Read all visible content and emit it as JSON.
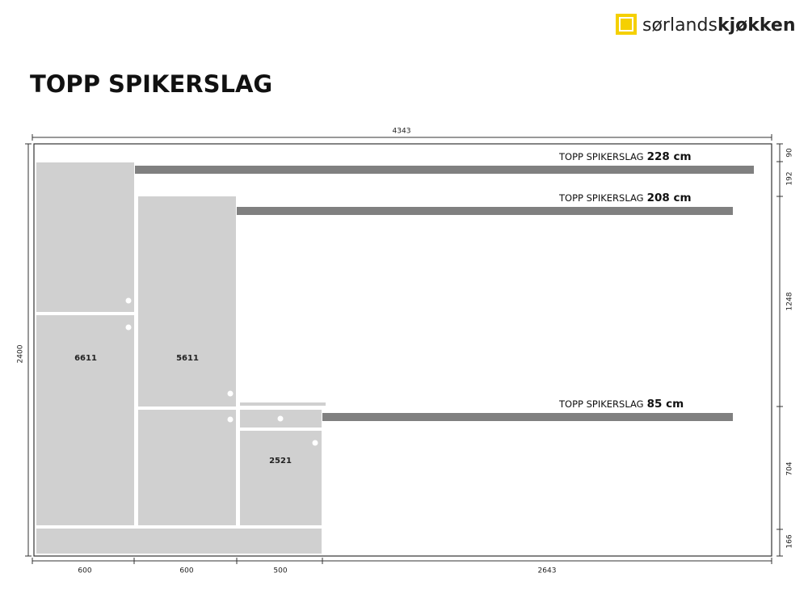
{
  "logo": {
    "regular": "sørlands",
    "bold": "kjøkken"
  },
  "title": "TOPP SPIKERSLAG",
  "dimensions": {
    "total_width": "4343",
    "total_height": "2400",
    "right": [
      "90",
      "192",
      "1248",
      "704",
      "166"
    ],
    "bottom": [
      "600",
      "600",
      "500",
      "2643"
    ]
  },
  "cabinets": [
    {
      "code": "6611"
    },
    {
      "code": "5611"
    },
    {
      "code": "2521"
    }
  ],
  "spikerslag": [
    {
      "label": "TOPP SPIKERSLAG",
      "height": "228 cm"
    },
    {
      "label": "TOPP SPIKERSLAG",
      "height": "208 cm"
    },
    {
      "label": "TOPP SPIKERSLAG",
      "height": "85 cm"
    }
  ]
}
